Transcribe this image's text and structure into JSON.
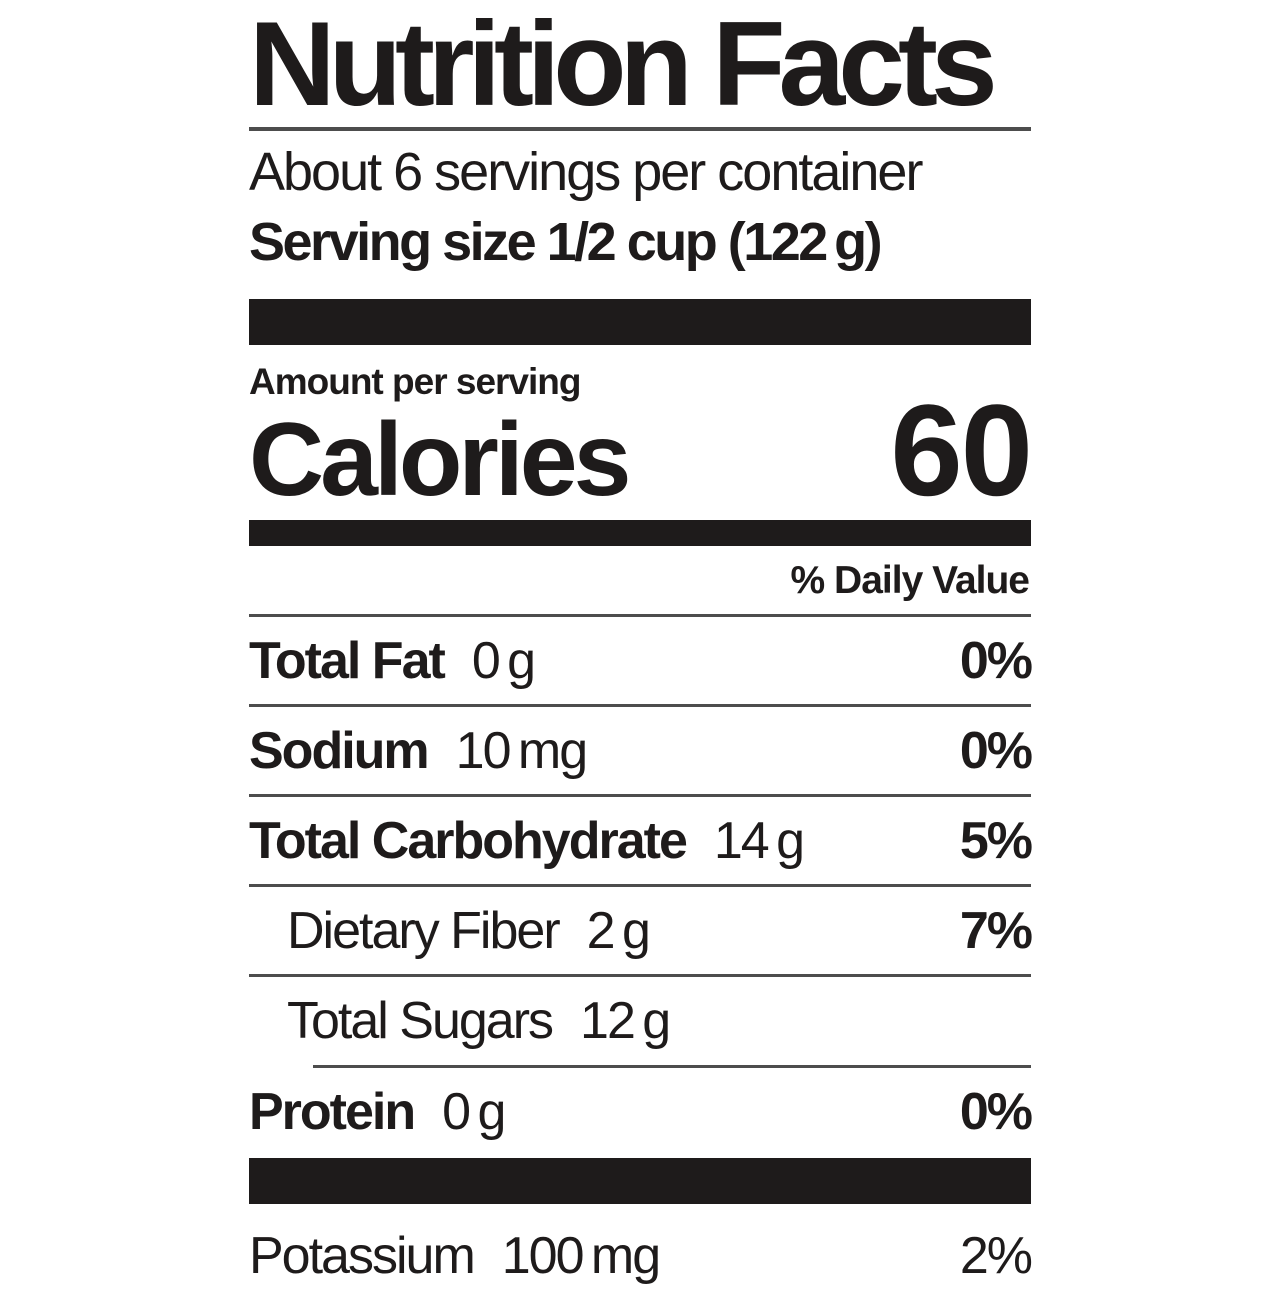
{
  "label": {
    "title": "Nutrition Facts",
    "servings_per_container": "About 6 servings per container",
    "serving_size_line": "Serving size 1/2 cup (122 g)",
    "amount_per_serving": "Amount per serving",
    "calories": {
      "label": "Calories",
      "value": "60"
    },
    "daily_value_header": "% Daily Value",
    "nutrients": [
      {
        "name": "Total Fat",
        "amount": "0 g",
        "daily_value": "0%"
      },
      {
        "name": "Sodium",
        "amount": "10 mg",
        "daily_value": "0%"
      },
      {
        "name": "Total Carbohydrate",
        "amount": "14 g",
        "daily_value": "5%"
      },
      {
        "name": "Dietary Fiber",
        "amount": "2 g",
        "daily_value": "7%"
      },
      {
        "name": "Total Sugars",
        "amount": "12 g",
        "daily_value": ""
      },
      {
        "name": "Protein",
        "amount": "0 g",
        "daily_value": "0%"
      },
      {
        "name": "Potassium",
        "amount": "100 mg",
        "daily_value": "2%"
      }
    ],
    "colors": {
      "ink": "#1e1b1b",
      "rule": "#4d4d4d",
      "background": "#ffffff"
    }
  }
}
